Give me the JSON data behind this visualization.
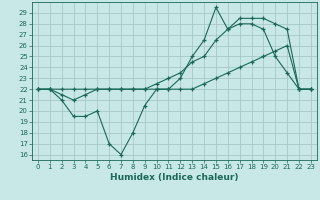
{
  "xlabel": "Humidex (Indice chaleur)",
  "ylabel": "",
  "bg_color": "#c8e8e8",
  "grid_color": "#a8c8c8",
  "line_color": "#1a6858",
  "xlim": [
    -0.5,
    23.5
  ],
  "ylim": [
    15.5,
    30.0
  ],
  "xticks": [
    0,
    1,
    2,
    3,
    4,
    5,
    6,
    7,
    8,
    9,
    10,
    11,
    12,
    13,
    14,
    15,
    16,
    17,
    18,
    19,
    20,
    21,
    22,
    23
  ],
  "yticks": [
    16,
    17,
    18,
    19,
    20,
    21,
    22,
    23,
    24,
    25,
    26,
    27,
    28,
    29
  ],
  "series1": [
    [
      0,
      22
    ],
    [
      1,
      22
    ],
    [
      2,
      21
    ],
    [
      3,
      19.5
    ],
    [
      4,
      19.5
    ],
    [
      5,
      20
    ],
    [
      6,
      17
    ],
    [
      7,
      16
    ],
    [
      8,
      18
    ],
    [
      9,
      20.5
    ],
    [
      10,
      22
    ],
    [
      11,
      22
    ],
    [
      12,
      23
    ],
    [
      13,
      25
    ],
    [
      14,
      26.5
    ],
    [
      15,
      29.5
    ],
    [
      16,
      27.5
    ],
    [
      17,
      28
    ],
    [
      18,
      28
    ],
    [
      19,
      27.5
    ],
    [
      20,
      25
    ],
    [
      21,
      23.5
    ],
    [
      22,
      22
    ],
    [
      23,
      22
    ]
  ],
  "series2": [
    [
      0,
      22
    ],
    [
      1,
      22
    ],
    [
      2,
      21.5
    ],
    [
      3,
      21
    ],
    [
      4,
      21.5
    ],
    [
      5,
      22
    ],
    [
      6,
      22
    ],
    [
      7,
      22
    ],
    [
      8,
      22
    ],
    [
      9,
      22
    ],
    [
      10,
      22.5
    ],
    [
      11,
      23
    ],
    [
      12,
      23.5
    ],
    [
      13,
      24.5
    ],
    [
      14,
      25
    ],
    [
      15,
      26.5
    ],
    [
      16,
      27.5
    ],
    [
      17,
      28.5
    ],
    [
      18,
      28.5
    ],
    [
      19,
      28.5
    ],
    [
      20,
      28
    ],
    [
      21,
      27.5
    ],
    [
      22,
      22
    ],
    [
      23,
      22
    ]
  ],
  "series3": [
    [
      0,
      22
    ],
    [
      1,
      22
    ],
    [
      2,
      22
    ],
    [
      3,
      22
    ],
    [
      4,
      22
    ],
    [
      5,
      22
    ],
    [
      6,
      22
    ],
    [
      7,
      22
    ],
    [
      8,
      22
    ],
    [
      9,
      22
    ],
    [
      10,
      22
    ],
    [
      11,
      22
    ],
    [
      12,
      22
    ],
    [
      13,
      22
    ],
    [
      14,
      22.5
    ],
    [
      15,
      23
    ],
    [
      16,
      23.5
    ],
    [
      17,
      24
    ],
    [
      18,
      24.5
    ],
    [
      19,
      25
    ],
    [
      20,
      25.5
    ],
    [
      21,
      26
    ],
    [
      22,
      22
    ],
    [
      23,
      22
    ]
  ]
}
